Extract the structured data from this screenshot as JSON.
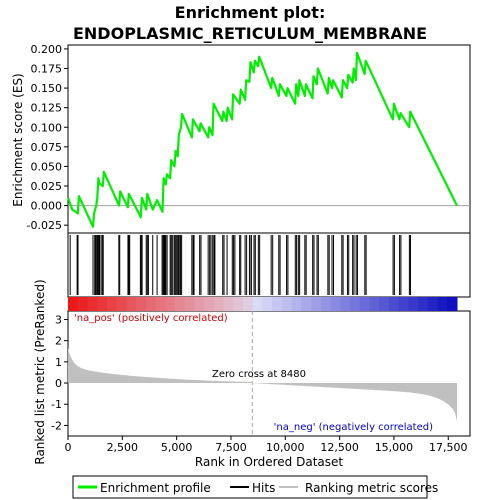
{
  "chart_data": {
    "type": "line",
    "title_line1": "Enrichment plot:",
    "title_line2": "ENDOPLASMIC_RETICULUM_MEMBRANE",
    "es_ylabel": "Enrichment score (ES)",
    "metric_ylabel": "Ranked list metric (PreRanked)",
    "xlabel": "Rank in Ordered Dataset",
    "xlim": [
      0,
      18500
    ],
    "es_ylim": [
      -0.035,
      0.205
    ],
    "metric_ylim": [
      -2.5,
      3.4
    ],
    "x_ticks": [
      0,
      2500,
      5000,
      7500,
      10000,
      12500,
      15000,
      17500
    ],
    "x_tick_labels": [
      "0",
      "2,500",
      "5,000",
      "7,500",
      "10,000",
      "12,500",
      "15,000",
      "17,500"
    ],
    "es_ticks": [
      -0.025,
      0.0,
      0.025,
      0.05,
      0.075,
      0.1,
      0.125,
      0.15,
      0.175,
      0.2
    ],
    "es_tick_labels": [
      "-0.025",
      "0.000",
      "0.025",
      "0.050",
      "0.075",
      "0.100",
      "0.125",
      "0.150",
      "0.175",
      "0.200"
    ],
    "metric_ticks": [
      -2,
      -1,
      0,
      1,
      2,
      3
    ],
    "metric_tick_labels": [
      "-2",
      "-1",
      "0",
      "1",
      "2",
      "3"
    ],
    "zero_cross_rank": 8480,
    "zero_cross_label": "Zero cross at 8480",
    "pos_label": "'na_pos' (positively correlated)",
    "neg_label": "'na_neg' (negatively correlated)",
    "n_genes": 17900,
    "series": [
      {
        "name": "Enrichment profile",
        "color": "#00ee00",
        "x": [
          0,
          200,
          450,
          500,
          1150,
          1200,
          1300,
          1350,
          1400,
          1450,
          1600,
          1650,
          2350,
          2400,
          2750,
          2800,
          3350,
          3400,
          3600,
          3650,
          3900,
          4100,
          4350,
          4400,
          4500,
          4550,
          4700,
          4750,
          4900,
          4950,
          5050,
          5100,
          5200,
          5250,
          5700,
          5750,
          6050,
          6100,
          6450,
          6500,
          6650,
          6700,
          7100,
          7150,
          7300,
          7350,
          7550,
          7600,
          7900,
          7950,
          8150,
          8200,
          8350,
          8400,
          8550,
          8600,
          8750,
          8800,
          9350,
          9400,
          9700,
          9750,
          10050,
          10100,
          10450,
          10500,
          10600,
          10650,
          10900,
          10950,
          11250,
          11300,
          11450,
          11500,
          11950,
          12000,
          12150,
          12200,
          12600,
          12650,
          12850,
          12900,
          13100,
          13150,
          13250,
          13300,
          13650,
          13700,
          14950,
          15000,
          15250,
          15300,
          15700,
          15750,
          17900
        ],
        "y": [
          0.01,
          -0.005,
          -0.01,
          0.012,
          -0.027,
          -0.01,
          0.0,
          0.01,
          0.035,
          0.028,
          0.025,
          0.043,
          0.0,
          0.018,
          -0.002,
          0.015,
          -0.015,
          0.01,
          -0.005,
          0.015,
          -0.005,
          0.007,
          -0.008,
          0.035,
          0.027,
          0.04,
          0.035,
          0.058,
          0.05,
          0.07,
          0.063,
          0.09,
          0.1,
          0.117,
          0.087,
          0.11,
          0.095,
          0.105,
          0.087,
          0.1,
          0.09,
          0.13,
          0.108,
          0.12,
          0.108,
          0.125,
          0.11,
          0.142,
          0.13,
          0.148,
          0.135,
          0.16,
          0.158,
          0.183,
          0.17,
          0.185,
          0.178,
          0.19,
          0.15,
          0.163,
          0.14,
          0.155,
          0.14,
          0.15,
          0.13,
          0.155,
          0.14,
          0.16,
          0.14,
          0.155,
          0.137,
          0.165,
          0.155,
          0.175,
          0.143,
          0.163,
          0.15,
          0.16,
          0.138,
          0.16,
          0.15,
          0.167,
          0.157,
          0.175,
          0.16,
          0.195,
          0.168,
          0.185,
          0.11,
          0.13,
          0.11,
          0.118,
          0.1,
          0.12,
          0.0
        ]
      }
    ],
    "hits": [
      100,
      420,
      460,
      1150,
      1230,
      1270,
      1320,
      1360,
      1400,
      1450,
      1520,
      1580,
      1620,
      2340,
      2380,
      2760,
      2800,
      2840,
      3330,
      3370,
      3410,
      3600,
      3650,
      3700,
      3900,
      4100,
      4330,
      4380,
      4420,
      4460,
      4500,
      4560,
      4700,
      4750,
      4800,
      4880,
      4930,
      4980,
      5030,
      5080,
      5120,
      5180,
      5230,
      5700,
      5760,
      5800,
      6060,
      6120,
      6450,
      6520,
      6580,
      6660,
      6720,
      6760,
      7120,
      7180,
      7320,
      7560,
      7620,
      7680,
      7900,
      7950,
      8150,
      8220,
      8350,
      8420,
      8440,
      8560,
      8620,
      8760,
      8820,
      9350,
      9420,
      9700,
      9760,
      10060,
      10120,
      10460,
      10520,
      10600,
      10660,
      10900,
      10960,
      11260,
      11320,
      11460,
      11520,
      11960,
      12020,
      12150,
      12220,
      12600,
      12660,
      12860,
      12920,
      13100,
      13160,
      13260,
      13320,
      13660,
      13720,
      14960,
      15020,
      15260,
      15320,
      15710,
      15760
    ]
  },
  "legend": {
    "items": [
      {
        "label": "Enrichment profile",
        "color": "#00ee00"
      },
      {
        "label": "Hits",
        "color": "#000000"
      },
      {
        "label": "Ranking metric scores",
        "color": "#c0c0c0"
      }
    ]
  },
  "colors": {
    "es_line": "#00ee00",
    "zero_line": "#a0a0a0",
    "pos_text": "#cc0000",
    "neg_text": "#0000cc",
    "metric_fill": "#c0c0c0"
  }
}
